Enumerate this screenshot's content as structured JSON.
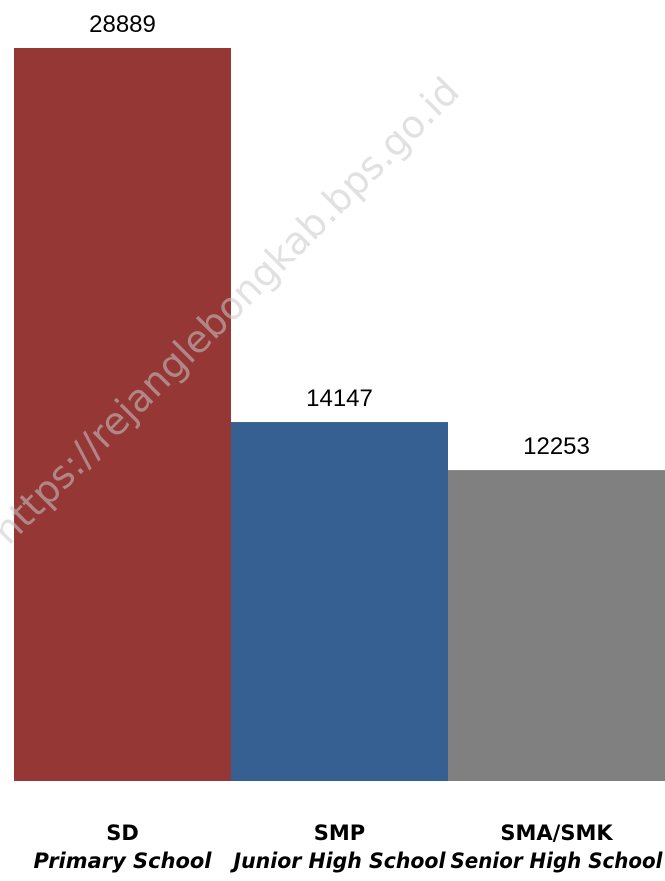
{
  "watermark": "https://rejanglebongkab.bps.go.id",
  "chart_data": {
    "type": "bar",
    "categories": [
      "SD",
      "SMP",
      "SMA/SMK"
    ],
    "category_sublabels": [
      "Primary School",
      "Junior High School",
      "Senior High School"
    ],
    "values": [
      28889,
      14147,
      12253
    ],
    "data_labels": [
      "28889",
      "14147",
      "12253"
    ],
    "colors": [
      "#953735",
      "#376092",
      "#808080"
    ],
    "ylim": [
      0,
      28889
    ],
    "grid": false,
    "legend": "none"
  }
}
